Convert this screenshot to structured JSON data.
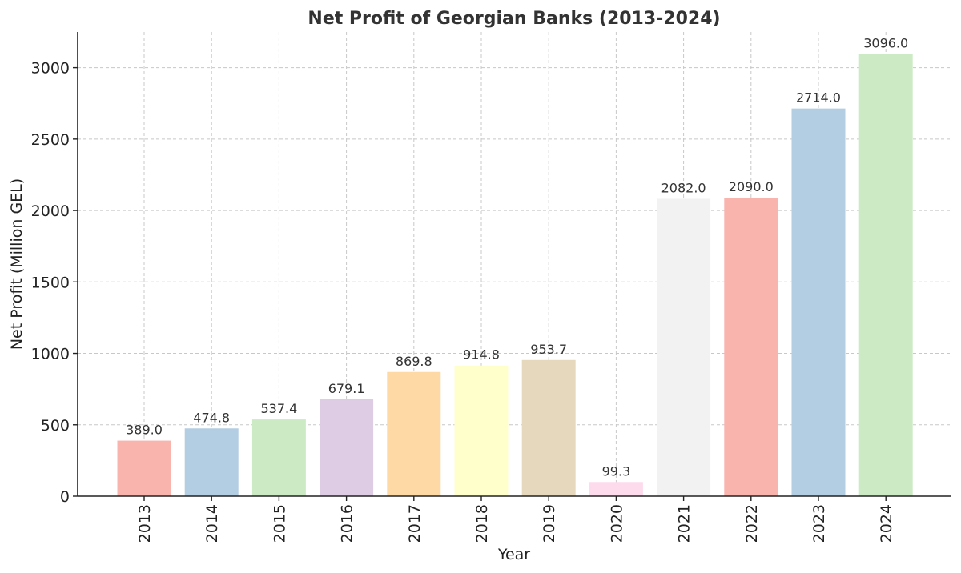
{
  "chart_data": {
    "type": "bar",
    "title": "Net Profit of Georgian Banks (2013-2024)",
    "xlabel": "Year",
    "ylabel": "Net Profit (Million GEL)",
    "categories": [
      "2013",
      "2014",
      "2015",
      "2016",
      "2017",
      "2018",
      "2019",
      "2020",
      "2021",
      "2022",
      "2023",
      "2024"
    ],
    "values": [
      389.0,
      474.8,
      537.4,
      679.1,
      869.8,
      914.8,
      953.7,
      99.3,
      2082.0,
      2090.0,
      2714.0,
      3096.0
    ],
    "data_labels": [
      "389.0",
      "474.8",
      "537.4",
      "679.1",
      "869.8",
      "914.8",
      "953.7",
      "99.3",
      "2082.0",
      "2090.0",
      "2714.0",
      "3096.0"
    ],
    "colors": [
      "#f9b4ad",
      "#b3cde3",
      "#ccebc5",
      "#decbe4",
      "#fed9a6",
      "#ffffcc",
      "#e5d8bd",
      "#fddaec",
      "#f2f2f2",
      "#f9b4ad",
      "#b3cde3",
      "#ccebc5"
    ],
    "yticks": [
      0,
      500,
      1000,
      1500,
      2000,
      2500,
      3000
    ],
    "ylim": [
      0,
      3250
    ],
    "grid": true,
    "xtick_rotation": "vertical"
  }
}
